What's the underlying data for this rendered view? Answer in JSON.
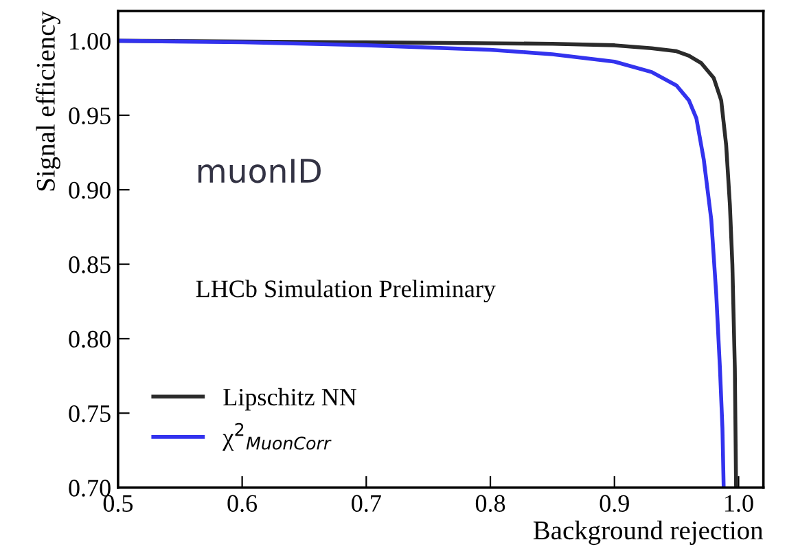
{
  "chart_data": {
    "type": "line",
    "xlabel": "Background rejection",
    "ylabel": "Signal efficiency",
    "annotations": [
      "muonID",
      "LHCb Simulation Preliminary"
    ],
    "series": [
      {
        "name": "Lipschitz NN",
        "color": "#2b2b2b",
        "x": [
          0.5,
          0.7,
          0.85,
          0.9,
          0.93,
          0.95,
          0.96,
          0.97,
          0.98,
          0.986,
          0.99,
          0.993,
          0.995,
          0.997,
          0.998
        ],
        "values": [
          1.0,
          0.999,
          0.998,
          0.997,
          0.995,
          0.993,
          0.99,
          0.985,
          0.975,
          0.96,
          0.93,
          0.89,
          0.85,
          0.78,
          0.7
        ]
      },
      {
        "name": "χ$^{2}$$_{MuonCorr}$",
        "color": "#3333ee",
        "x": [
          0.5,
          0.6,
          0.7,
          0.8,
          0.85,
          0.9,
          0.93,
          0.95,
          0.96,
          0.966,
          0.972,
          0.978,
          0.982,
          0.985,
          0.987,
          0.988
        ],
        "values": [
          1.0,
          0.999,
          0.997,
          0.994,
          0.991,
          0.986,
          0.979,
          0.97,
          0.96,
          0.948,
          0.92,
          0.88,
          0.83,
          0.78,
          0.74,
          0.7
        ]
      }
    ],
    "xlim": [
      0.5,
      1.02
    ],
    "ylim": [
      0.7,
      1.02
    ],
    "xticks": [
      {
        "value": 0.5,
        "label": "0.5"
      },
      {
        "value": 0.6,
        "label": "0.6"
      },
      {
        "value": 0.7,
        "label": "0.7"
      },
      {
        "value": 0.8,
        "label": "0.8"
      },
      {
        "value": 0.9,
        "label": "0.9"
      },
      {
        "value": 1.0,
        "label": "1.0"
      }
    ],
    "yticks": [
      {
        "value": 0.7,
        "label": "0.70"
      },
      {
        "value": 0.75,
        "label": "0.75"
      },
      {
        "value": 0.8,
        "label": "0.80"
      },
      {
        "value": 0.85,
        "label": "0.85"
      },
      {
        "value": 0.9,
        "label": "0.90"
      },
      {
        "value": 0.95,
        "label": "0.95"
      },
      {
        "value": 1.0,
        "label": "1.00"
      }
    ],
    "legend": "bottom left",
    "grid": false
  }
}
